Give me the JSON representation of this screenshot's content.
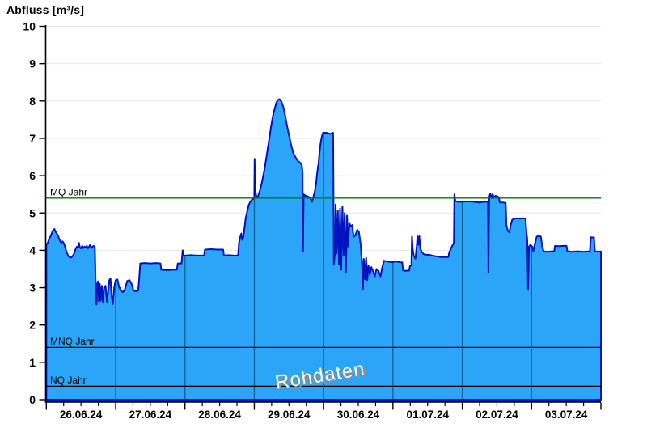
{
  "title": "Abfluss [m³/s]",
  "watermark": "Rohdaten",
  "colors": {
    "area_fill": "#2aa5f7",
    "area_stroke": "#0013c0",
    "mq_line": "#007a00",
    "stat_line": "#000000",
    "grid": "#e7e7e7",
    "day_line": "rgba(0,0,0,0.40)",
    "axis": "#000000",
    "watermark_text": "#ffffff",
    "watermark_shadow": "#8f8f8f"
  },
  "chart_data": {
    "type": "area",
    "title": "Abfluss [m³/s]",
    "ylabel": "Abfluss [m³/s]",
    "unit": "m³/s",
    "ylim": [
      0,
      10
    ],
    "y_tick_step": 1,
    "y_ticks": [
      0,
      1,
      2,
      3,
      4,
      5,
      6,
      7,
      8,
      9,
      10
    ],
    "grid": "horizontal-light",
    "x_days": [
      "26.06.24",
      "27.06.24",
      "28.06.24",
      "29.06.24",
      "30.06.24",
      "01.07.24",
      "02.07.24",
      "03.07.24"
    ],
    "hours_per_day": 24,
    "x_minor_tick_hours": 6,
    "reference_lines": [
      {
        "label": "MQ Jahr",
        "value": 5.4,
        "color": "#007a00"
      },
      {
        "label": "MNQ Jahr",
        "value": 1.4,
        "color": "#000000"
      },
      {
        "label": "NQ Jahr",
        "value": 0.36,
        "color": "#000000"
      }
    ],
    "series": [
      {
        "name": "Rohdaten",
        "points": [
          [
            0,
            4.15
          ],
          [
            0.5,
            4.2
          ],
          [
            1,
            4.32
          ],
          [
            1.5,
            4.38
          ],
          [
            2,
            4.48
          ],
          [
            2.4,
            4.55
          ],
          [
            2.8,
            4.57
          ],
          [
            3.2,
            4.5
          ],
          [
            3.6,
            4.45
          ],
          [
            4,
            4.4
          ],
          [
            4.4,
            4.32
          ],
          [
            4.8,
            4.25
          ],
          [
            5.2,
            4.2
          ],
          [
            5.6,
            4.24
          ],
          [
            6,
            4.2
          ],
          [
            6.4,
            4.12
          ],
          [
            6.8,
            4.0
          ],
          [
            7.2,
            3.92
          ],
          [
            7.6,
            3.85
          ],
          [
            8.2,
            3.8
          ],
          [
            8.8,
            3.82
          ],
          [
            9.4,
            3.88
          ],
          [
            9.8,
            3.95
          ],
          [
            10.2,
            4.05
          ],
          [
            10.6,
            4.1
          ],
          [
            11,
            4.06
          ],
          [
            11.3,
            4.2
          ],
          [
            11.6,
            4.08
          ],
          [
            12,
            4.05
          ],
          [
            12.4,
            4.12
          ],
          [
            12.8,
            4.06
          ],
          [
            13.2,
            4.1
          ],
          [
            13.6,
            4.08
          ],
          [
            14,
            4.12
          ],
          [
            14.4,
            4.05
          ],
          [
            14.8,
            4.1
          ],
          [
            15.2,
            4.15
          ],
          [
            15.6,
            4.06
          ],
          [
            16,
            4.1
          ],
          [
            16.4,
            4.12
          ],
          [
            16.8,
            4.08
          ],
          [
            17,
            3.4
          ],
          [
            17.2,
            2.7
          ],
          [
            17.4,
            2.55
          ],
          [
            17.6,
            3.1
          ],
          [
            17.9,
            3.17
          ],
          [
            18.2,
            2.63
          ],
          [
            18.5,
            3.1
          ],
          [
            18.8,
            2.65
          ],
          [
            19.2,
            3.05
          ],
          [
            19.6,
            2.6
          ],
          [
            20,
            3.0
          ],
          [
            20.5,
            3.05
          ],
          [
            21,
            2.62
          ],
          [
            21.4,
            2.9
          ],
          [
            21.8,
            3.2
          ],
          [
            22.2,
            3.25
          ],
          [
            22.6,
            2.8
          ],
          [
            23,
            2.56
          ],
          [
            23.5,
            3.0
          ],
          [
            24,
            3.2
          ],
          [
            24.6,
            3.22
          ],
          [
            25.2,
            3.02
          ],
          [
            25.8,
            2.92
          ],
          [
            26.5,
            2.88
          ],
          [
            27.2,
            2.95
          ],
          [
            28,
            3.18
          ],
          [
            28.8,
            3.2
          ],
          [
            29.5,
            3.1
          ],
          [
            30.2,
            2.92
          ],
          [
            31,
            2.9
          ],
          [
            31.8,
            2.92
          ],
          [
            32.2,
            3.3
          ],
          [
            32.5,
            3.65
          ],
          [
            34,
            3.66
          ],
          [
            36,
            3.65
          ],
          [
            38,
            3.66
          ],
          [
            39.5,
            3.65
          ],
          [
            39.8,
            3.48
          ],
          [
            42,
            3.47
          ],
          [
            44,
            3.48
          ],
          [
            45.2,
            3.48
          ],
          [
            45.5,
            3.65
          ],
          [
            46.8,
            3.65
          ],
          [
            47.2,
            4.0
          ],
          [
            47.5,
            3.86
          ],
          [
            48,
            3.86
          ],
          [
            50,
            3.87
          ],
          [
            52,
            3.86
          ],
          [
            54.6,
            3.86
          ],
          [
            54.9,
            4.02
          ],
          [
            57,
            4.03
          ],
          [
            59,
            4.02
          ],
          [
            61.2,
            4.02
          ],
          [
            61.5,
            3.86
          ],
          [
            63,
            3.87
          ],
          [
            65,
            3.86
          ],
          [
            66.4,
            3.86
          ],
          [
            66.7,
            4.2
          ],
          [
            67.1,
            4.35
          ],
          [
            67.5,
            4.45
          ],
          [
            67.8,
            4.28
          ],
          [
            68.2,
            4.35
          ],
          [
            68.6,
            4.6
          ],
          [
            69,
            4.85
          ],
          [
            69.4,
            5.0
          ],
          [
            70,
            5.2
          ],
          [
            70.6,
            5.3
          ],
          [
            71.2,
            5.36
          ],
          [
            72,
            5.4
          ],
          [
            72.1,
            6.45
          ],
          [
            72.35,
            5.6
          ],
          [
            72.7,
            5.45
          ],
          [
            73.1,
            5.42
          ],
          [
            73.6,
            5.52
          ],
          [
            74.1,
            5.65
          ],
          [
            74.6,
            5.8
          ],
          [
            75.1,
            6.0
          ],
          [
            75.6,
            6.2
          ],
          [
            76.1,
            6.45
          ],
          [
            76.6,
            6.7
          ],
          [
            77.1,
            6.95
          ],
          [
            77.6,
            7.2
          ],
          [
            78.1,
            7.45
          ],
          [
            78.6,
            7.65
          ],
          [
            79.1,
            7.8
          ],
          [
            79.6,
            7.95
          ],
          [
            80.1,
            8.02
          ],
          [
            80.7,
            8.05
          ],
          [
            81.3,
            8.0
          ],
          [
            82,
            7.85
          ],
          [
            82.7,
            7.6
          ],
          [
            83.4,
            7.3
          ],
          [
            84.1,
            7.05
          ],
          [
            84.8,
            6.8
          ],
          [
            85.5,
            6.6
          ],
          [
            86.2,
            6.5
          ],
          [
            87,
            6.4
          ],
          [
            87.8,
            6.35
          ],
          [
            88.4,
            6.3
          ],
          [
            88.7,
            6.1
          ],
          [
            88.85,
            3.97
          ],
          [
            89.1,
            5.5
          ],
          [
            89.6,
            5.47
          ],
          [
            90.3,
            5.45
          ],
          [
            91.2,
            5.42
          ],
          [
            92,
            5.3
          ],
          [
            92.5,
            5.45
          ],
          [
            93,
            5.6
          ],
          [
            93.4,
            5.8
          ],
          [
            93.8,
            6.1
          ],
          [
            94.2,
            6.3
          ],
          [
            94.6,
            6.65
          ],
          [
            95,
            6.9
          ],
          [
            95.4,
            7.05
          ],
          [
            95.8,
            7.15
          ],
          [
            97,
            7.15
          ],
          [
            98.2,
            7.12
          ],
          [
            99.3,
            7.15
          ],
          [
            99.55,
            3.63
          ],
          [
            99.9,
            3.92
          ],
          [
            100.15,
            5.23
          ],
          [
            100.5,
            3.92
          ],
          [
            100.9,
            5.07
          ],
          [
            101.3,
            3.63
          ],
          [
            101.7,
            5.12
          ],
          [
            102.1,
            3.48
          ],
          [
            102.5,
            5.18
          ],
          [
            102.9,
            3.85
          ],
          [
            103.3,
            5.0
          ],
          [
            103.7,
            3.4
          ],
          [
            104.1,
            4.93
          ],
          [
            104.5,
            4.1
          ],
          [
            104.9,
            4.74
          ],
          [
            105.4,
            4.63
          ],
          [
            105.9,
            4.68
          ],
          [
            106.4,
            4.36
          ],
          [
            107,
            4.4
          ],
          [
            107.6,
            4.55
          ],
          [
            108.2,
            4.5
          ],
          [
            108.8,
            4.17
          ],
          [
            109.3,
            3.63
          ],
          [
            109.6,
            2.95
          ],
          [
            109.9,
            3.77
          ],
          [
            110.3,
            3.23
          ],
          [
            110.7,
            3.8
          ],
          [
            111.1,
            3.2
          ],
          [
            111.5,
            3.6
          ],
          [
            112,
            3.35
          ],
          [
            112.5,
            3.55
          ],
          [
            113.1,
            3.45
          ],
          [
            113.7,
            3.3
          ],
          [
            114.3,
            3.5
          ],
          [
            115,
            3.45
          ],
          [
            115.7,
            3.3
          ],
          [
            116.3,
            3.55
          ],
          [
            116.9,
            3.72
          ],
          [
            118,
            3.7
          ],
          [
            119.5,
            3.68
          ],
          [
            121,
            3.7
          ],
          [
            122.5,
            3.68
          ],
          [
            123.2,
            3.68
          ],
          [
            123.5,
            3.46
          ],
          [
            124.5,
            3.45
          ],
          [
            125.6,
            3.46
          ],
          [
            125.9,
            3.58
          ],
          [
            126.4,
            3.6
          ],
          [
            126.6,
            4.37
          ],
          [
            126.9,
            4.0
          ],
          [
            127.2,
            3.86
          ],
          [
            127.8,
            3.78
          ],
          [
            128.2,
            4.1
          ],
          [
            128.5,
            4.37
          ],
          [
            128.8,
            4.15
          ],
          [
            129.1,
            4.38
          ],
          [
            129.5,
            4.05
          ],
          [
            130,
            3.95
          ],
          [
            130.6,
            3.9
          ],
          [
            131.4,
            3.88
          ],
          [
            132.4,
            3.88
          ],
          [
            133.6,
            3.86
          ],
          [
            135,
            3.84
          ],
          [
            136.5,
            3.82
          ],
          [
            138,
            3.82
          ],
          [
            139.2,
            3.82
          ],
          [
            139.5,
            3.95
          ],
          [
            140.1,
            4.05
          ],
          [
            140.7,
            4.15
          ],
          [
            141.1,
            4.2
          ],
          [
            141.25,
            5.5
          ],
          [
            141.6,
            5.32
          ],
          [
            142.5,
            5.3
          ],
          [
            144,
            5.3
          ],
          [
            146,
            5.31
          ],
          [
            148,
            5.3
          ],
          [
            150,
            5.28
          ],
          [
            151.5,
            5.3
          ],
          [
            152.9,
            5.3
          ],
          [
            153.05,
            3.4
          ],
          [
            153.3,
            5.42
          ],
          [
            153.7,
            5.52
          ],
          [
            154.1,
            5.4
          ],
          [
            154.5,
            5.5
          ],
          [
            155,
            5.42
          ],
          [
            155.5,
            5.46
          ],
          [
            156.2,
            5.44
          ],
          [
            156.7,
            5.42
          ],
          [
            157,
            5.28
          ],
          [
            158,
            5.28
          ],
          [
            159,
            5.27
          ],
          [
            159.3,
            4.66
          ],
          [
            159.8,
            4.52
          ],
          [
            160.3,
            4.48
          ],
          [
            160.8,
            4.7
          ],
          [
            161.3,
            4.82
          ],
          [
            162,
            4.85
          ],
          [
            163,
            4.86
          ],
          [
            164,
            4.85
          ],
          [
            165,
            4.86
          ],
          [
            165.9,
            4.85
          ],
          [
            166.2,
            4.5
          ],
          [
            166.5,
            4.3
          ],
          [
            166.8,
            2.95
          ],
          [
            167.1,
            4.1
          ],
          [
            167.6,
            4.15
          ],
          [
            168.2,
            4.1
          ],
          [
            168.6,
            3.97
          ],
          [
            169.2,
            4.2
          ],
          [
            169.8,
            4.37
          ],
          [
            170.5,
            4.38
          ],
          [
            171.2,
            4.37
          ],
          [
            171.7,
            4.1
          ],
          [
            172.2,
            3.97
          ],
          [
            173.5,
            3.96
          ],
          [
            175,
            3.97
          ],
          [
            175.8,
            3.97
          ],
          [
            176.1,
            4.12
          ],
          [
            177.5,
            4.11
          ],
          [
            179,
            4.12
          ],
          [
            180.1,
            4.12
          ],
          [
            180.4,
            3.97
          ],
          [
            182,
            3.96
          ],
          [
            184,
            3.97
          ],
          [
            186,
            3.96
          ],
          [
            188.2,
            3.97
          ],
          [
            188.5,
            4.35
          ],
          [
            189.3,
            4.34
          ],
          [
            189.6,
            4.35
          ],
          [
            189.9,
            3.97
          ],
          [
            191,
            3.96
          ],
          [
            192,
            3.97
          ]
        ]
      }
    ]
  }
}
